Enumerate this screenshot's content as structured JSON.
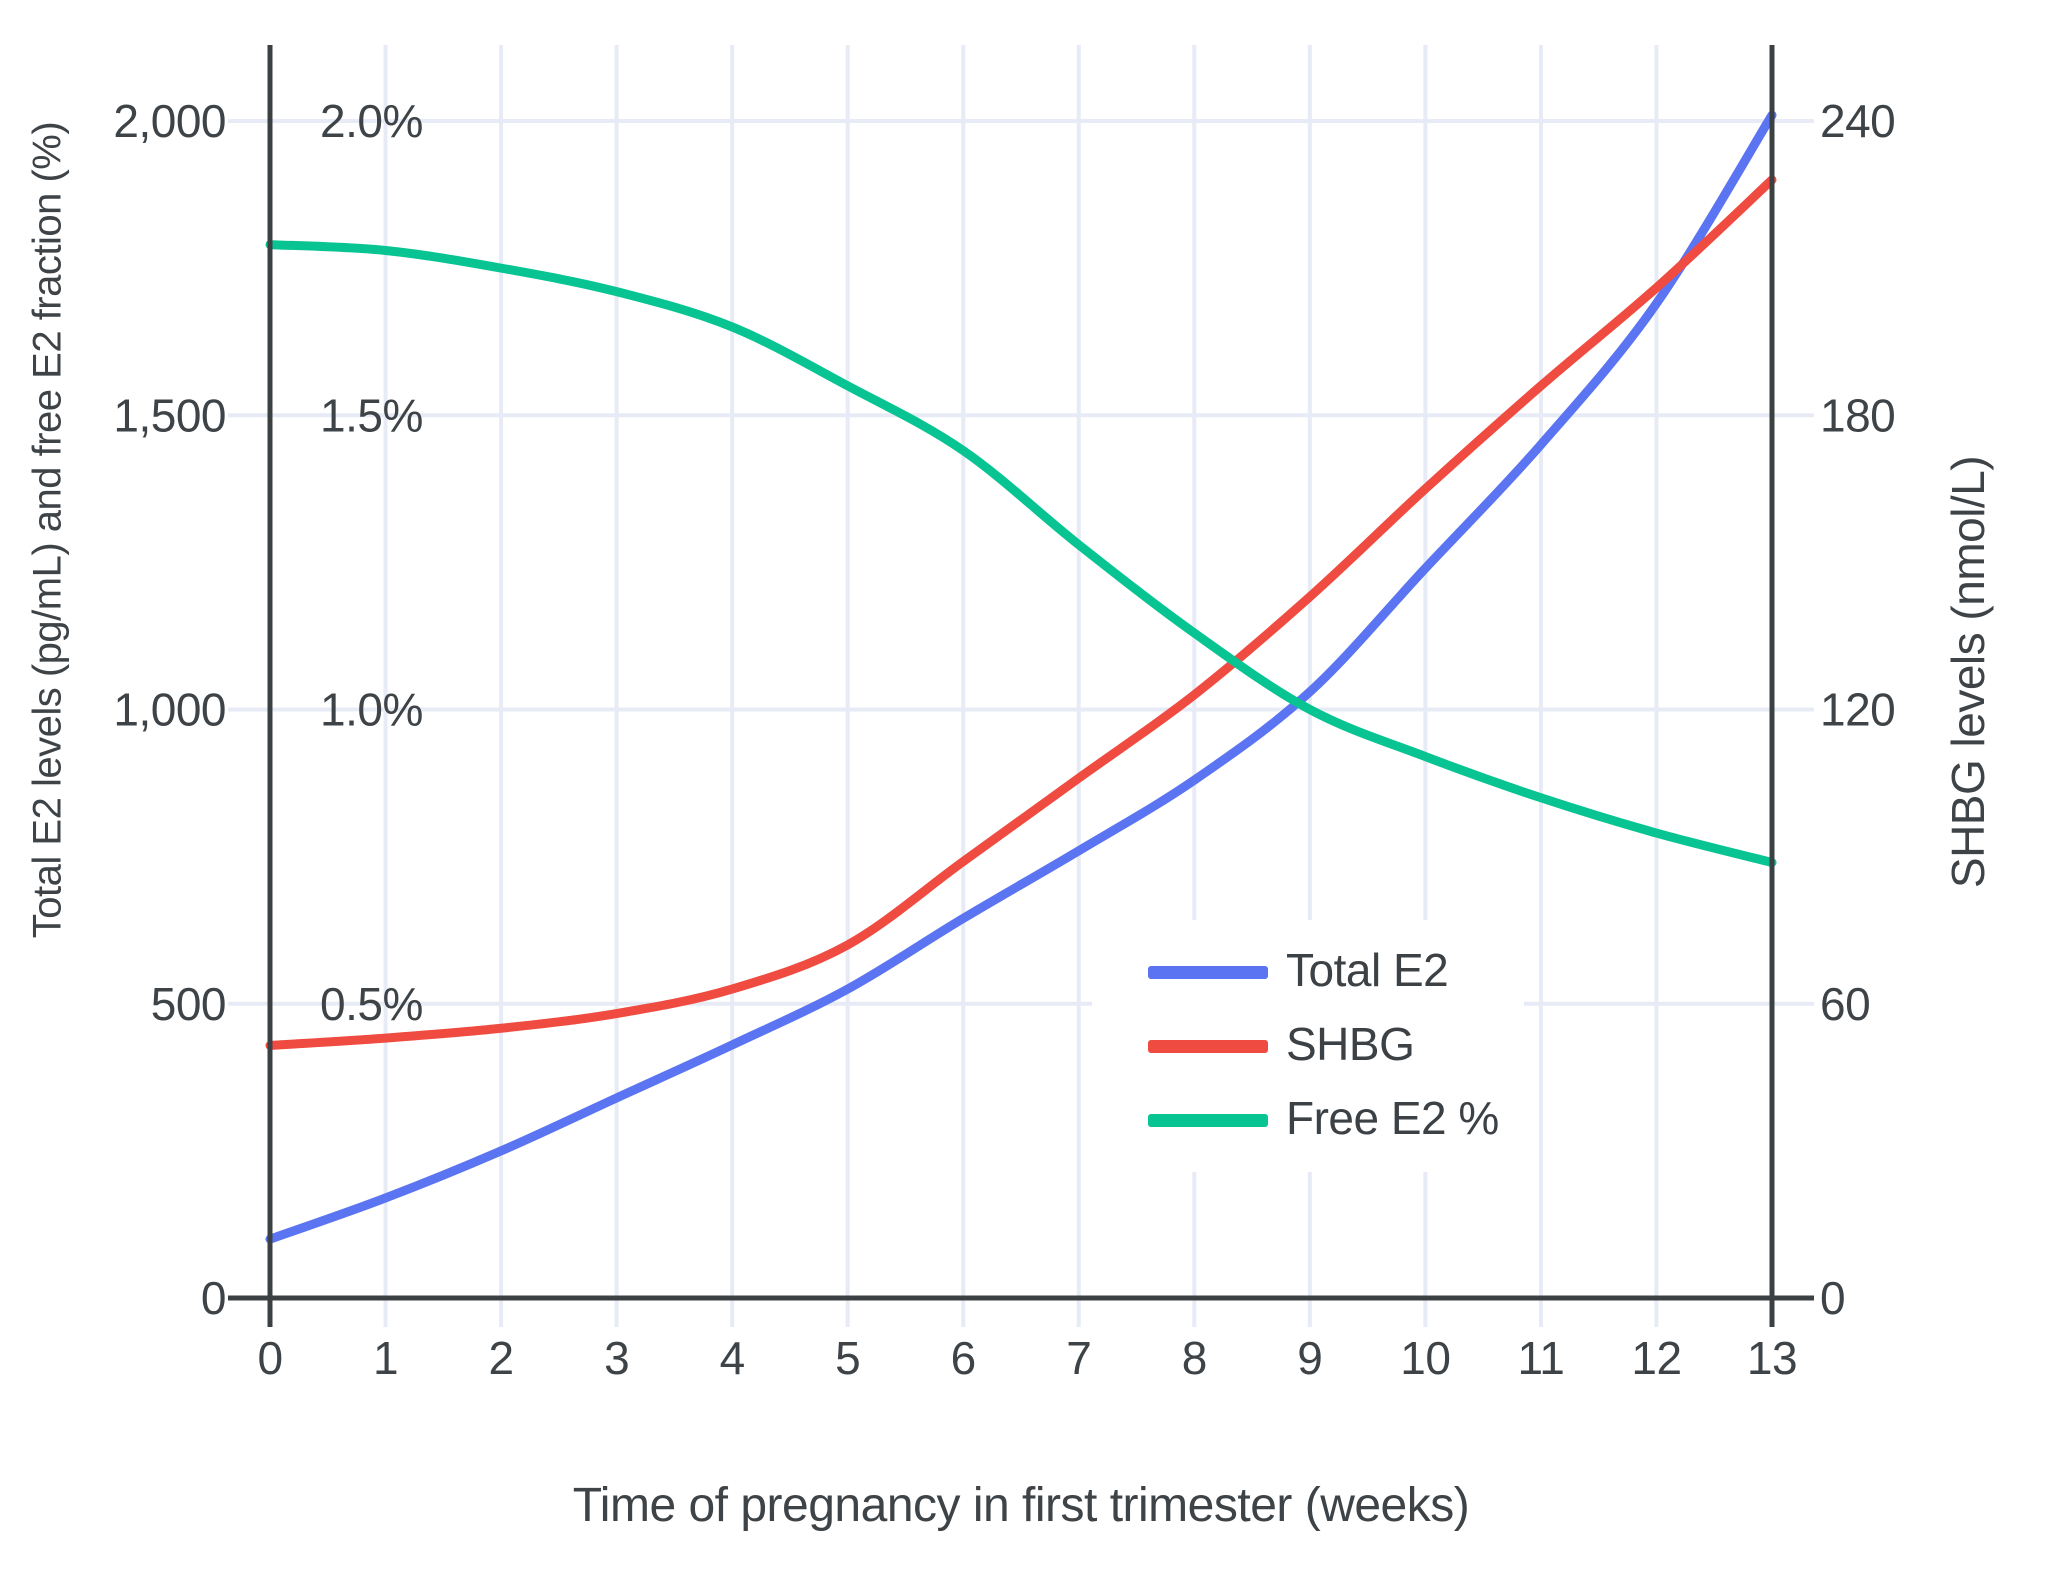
{
  "chart_data": {
    "type": "line",
    "title": "",
    "xlabel": "Time of pregnancy in first trimester (weeks)",
    "ylabel_left": "Total E2 levels (pg/mL) and free E2 fraction (%)",
    "ylabel_right": "SHBG levels (nmol/L)",
    "x": [
      0,
      1,
      2,
      3,
      4,
      5,
      6,
      7,
      8,
      9,
      10,
      11,
      12,
      13
    ],
    "axes": {
      "x_tick_labels": [
        "0",
        "1",
        "2",
        "3",
        "4",
        "5",
        "6",
        "7",
        "8",
        "9",
        "10",
        "11",
        "12",
        "13"
      ],
      "y_left_tick_labels": [
        "0",
        "500",
        "1,000",
        "1,500",
        "2,000"
      ],
      "y_left_percent_labels": [
        "0.5%",
        "1.0%",
        "1.5%",
        "2.0%"
      ],
      "y_right_tick_labels": [
        "0",
        "60",
        "120",
        "180",
        "240"
      ],
      "y_left_range": [
        0,
        2000
      ],
      "y_right_range": [
        0,
        240
      ],
      "y_percent_range": [
        0,
        2.0
      ],
      "grid": true,
      "legend_position": "center-right"
    },
    "series": [
      {
        "name": "Total E2",
        "unit": "pg/mL",
        "axis": "left",
        "color": "#5b74f2",
        "values": [
          100,
          170,
          250,
          340,
          430,
          525,
          645,
          760,
          880,
          1030,
          1240,
          1450,
          1690,
          2010
        ]
      },
      {
        "name": "SHBG",
        "unit": "nmol/L",
        "axis": "right",
        "color": "#ef4b40",
        "values": [
          51.5,
          53,
          55,
          58,
          63,
          72,
          89,
          106,
          123,
          143,
          165,
          186,
          206,
          228
        ]
      },
      {
        "name": "Free E2 %",
        "unit": "%",
        "axis": "percent",
        "color": "#08c492",
        "values": [
          1.79,
          1.78,
          1.75,
          1.71,
          1.65,
          1.55,
          1.44,
          1.28,
          1.13,
          1.0,
          0.92,
          0.85,
          0.79,
          0.74
        ]
      }
    ]
  },
  "colors": {
    "grid": "#e7ebf5",
    "axis_line": "#3b4043",
    "text": "#3e4347",
    "background": "#ffffff"
  }
}
